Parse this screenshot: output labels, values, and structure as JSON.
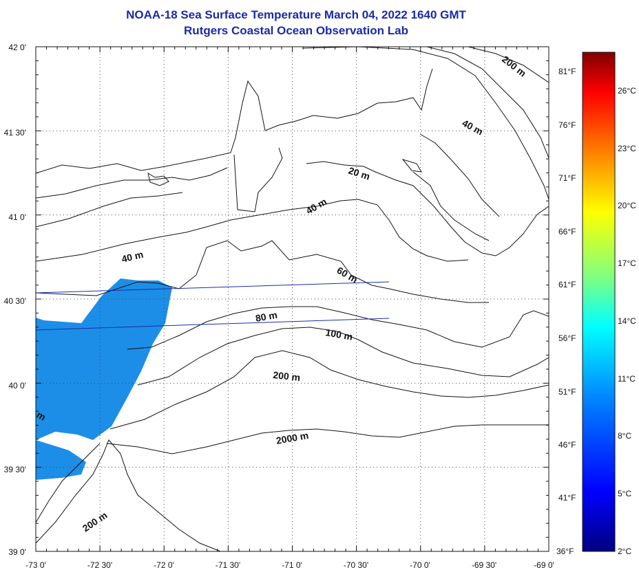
{
  "title": "NOAA-18 Sea Surface Temperature March 04, 2022 1640 GMT",
  "subtitle": "Rutgers Coastal Ocean Observation Lab",
  "latitude_labels": [
    "42 0'",
    "41 30'",
    "41 0'",
    "40 30'",
    "40 0'",
    "39 30'",
    "39 0'"
  ],
  "longitude_labels": [
    "-73 0'",
    "-72 30'",
    "-72 0'",
    "-71 30'",
    "-71 0'",
    "-70 30'",
    "-70 0'",
    "-69 30'",
    "-69 0'"
  ],
  "fahrenheit_labels": [
    "81°F",
    "76°F",
    "71°F",
    "66°F",
    "61°F",
    "56°F",
    "51°F",
    "46°F",
    "41°F",
    "36°F"
  ],
  "celsius_labels": [
    "26°C",
    "23°C",
    "20°C",
    "17°C",
    "14°C",
    "11°C",
    "8°C",
    "5°C",
    "2°C"
  ],
  "depth_labels": [
    "200 m",
    "40 m",
    "20 m",
    "40 m",
    "40 m",
    "60 m",
    "80 m",
    "100 m",
    "200 m",
    "2000 m",
    "200 m",
    "m"
  ],
  "colors": {
    "title": "#1a2aa8",
    "sst_fill": "#1c8ee8",
    "scan_line": "#1a2aa8",
    "colorbar_stops": [
      "#000080",
      "#0000ff",
      "#0080ff",
      "#00ffff",
      "#80ff80",
      "#ffff00",
      "#ff8000",
      "#ff0000",
      "#800000"
    ]
  }
}
